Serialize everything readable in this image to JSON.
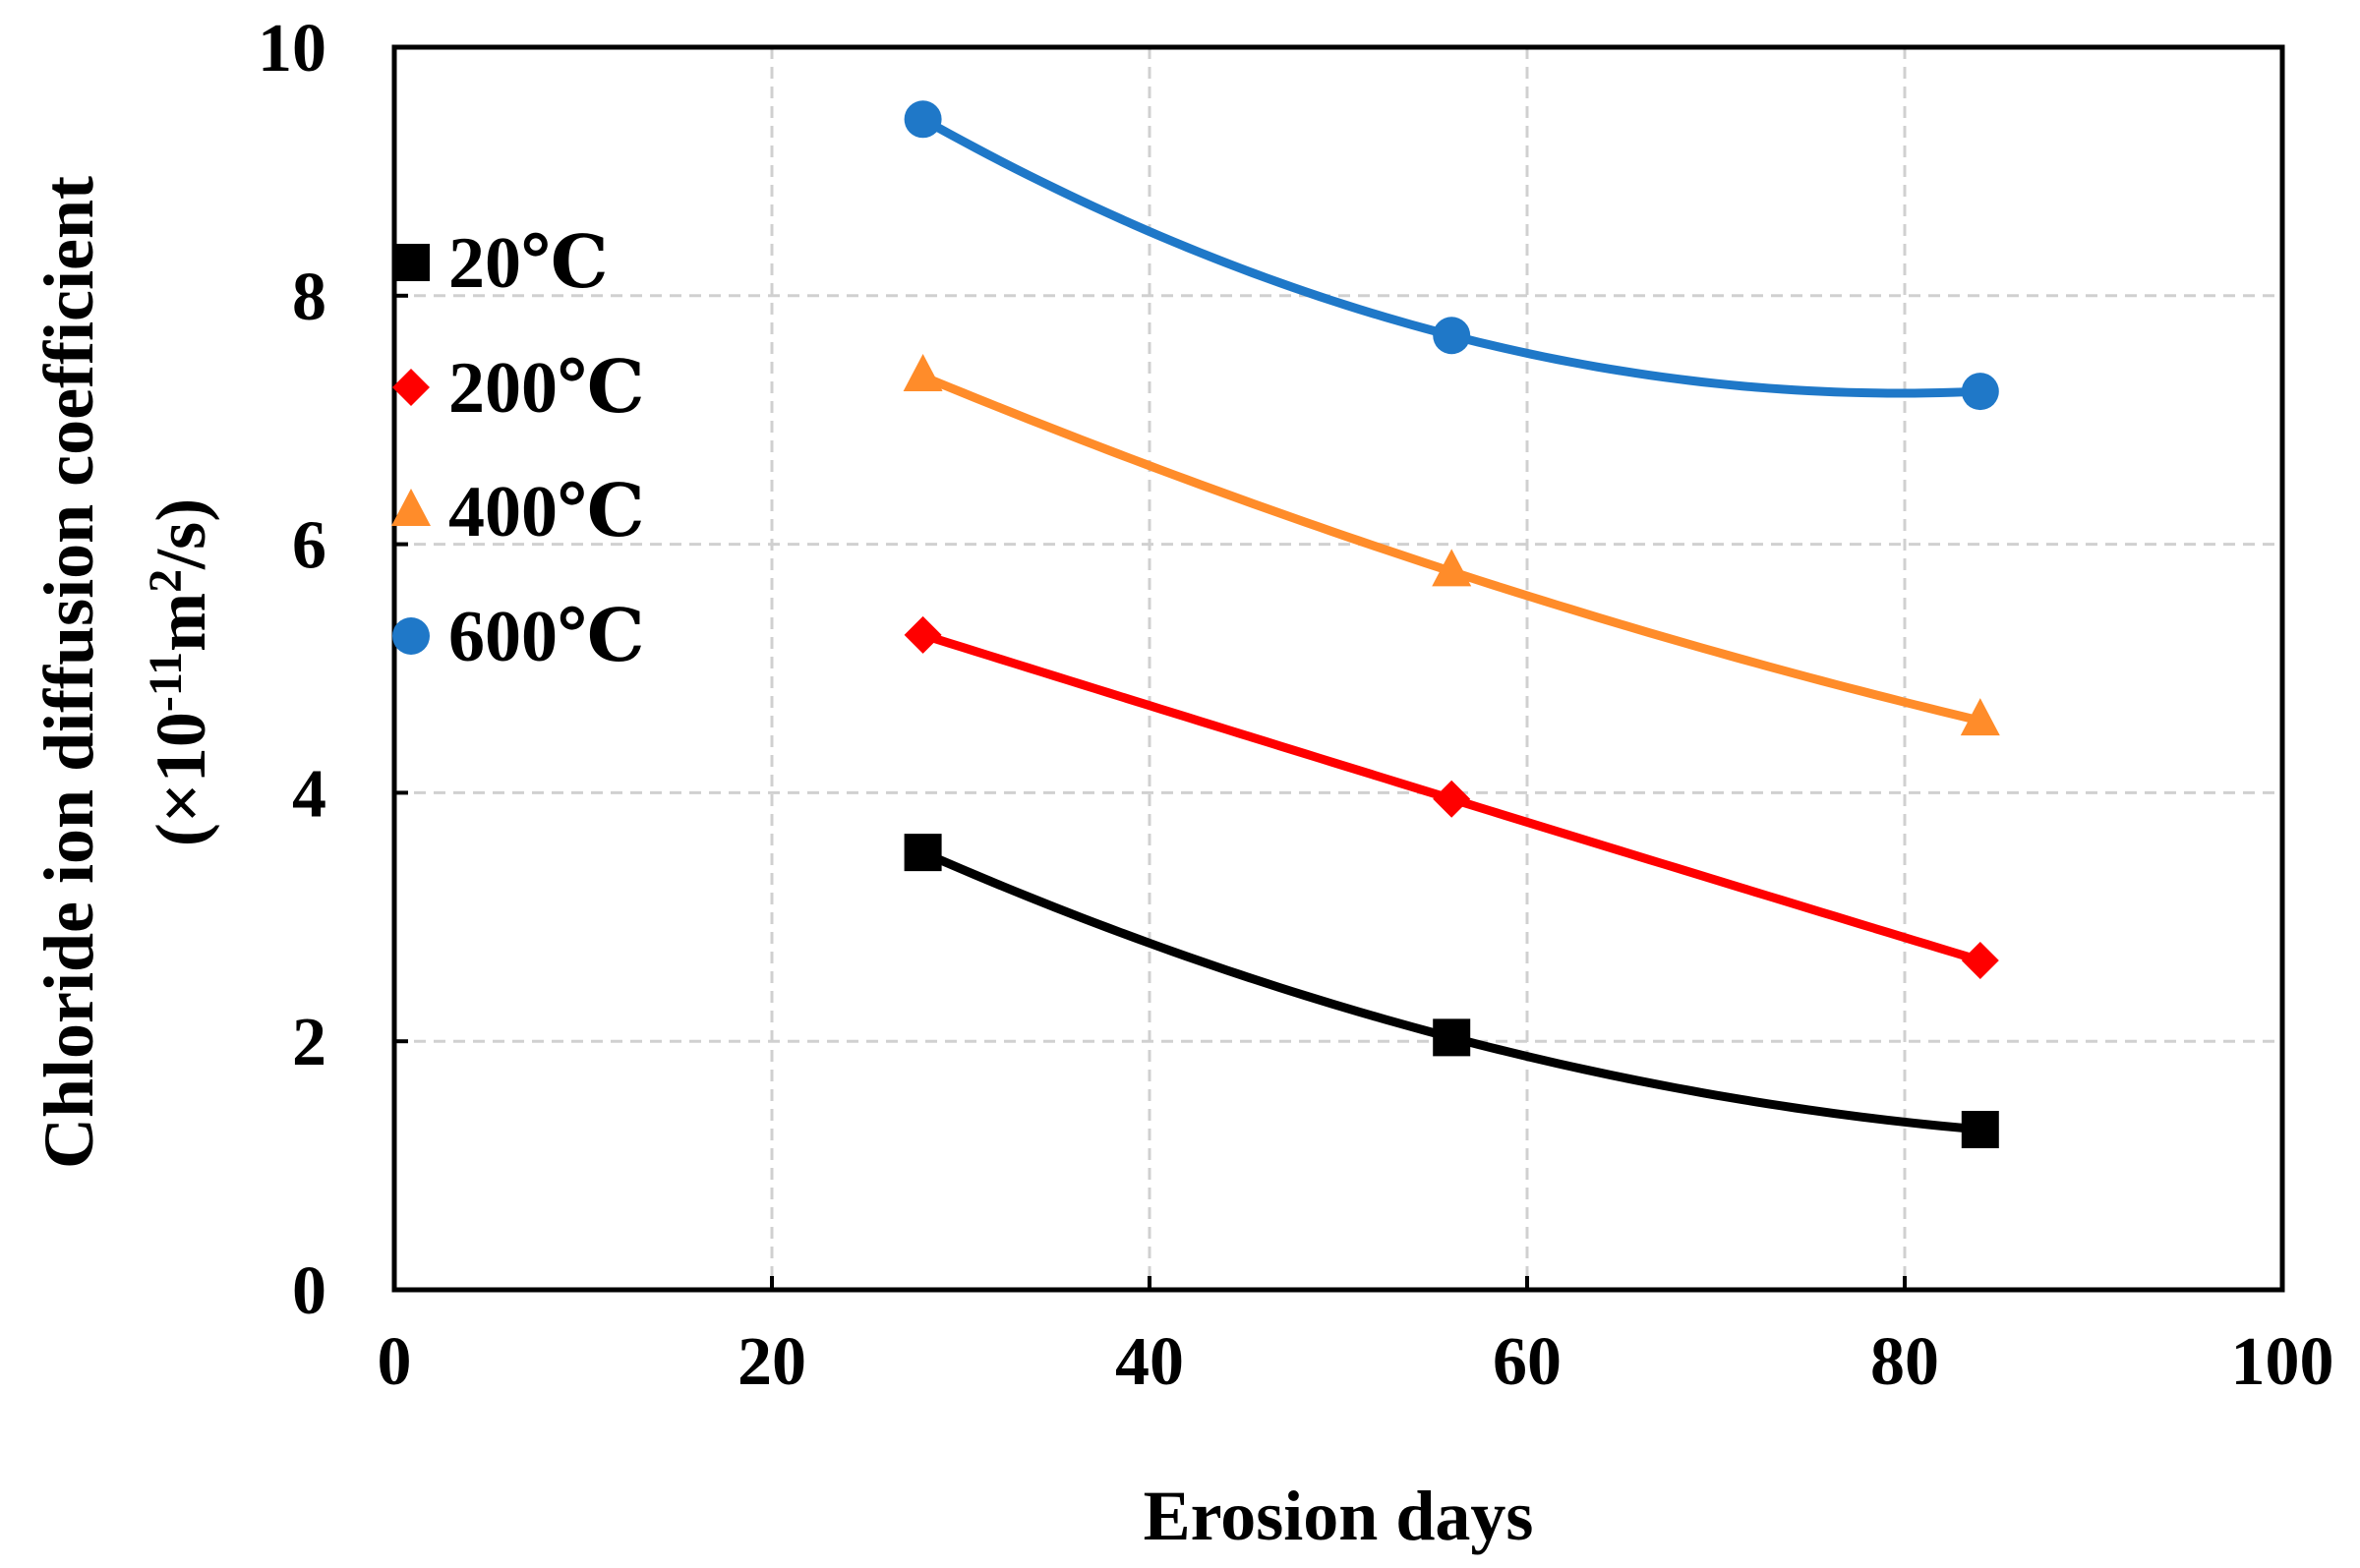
{
  "chart_data": {
    "type": "line",
    "title": "",
    "xlabel": "Erosion days",
    "ylabel_line1": "Chloride ion diffusion coefficient",
    "ylabel_line2_prefix": "(×10",
    "ylabel_line2_exp": "-11",
    "ylabel_line2_mid": "m",
    "ylabel_line2_exp2": "2",
    "ylabel_line2_suffix": "/s)",
    "xlim": [
      0,
      100
    ],
    "ylim": [
      0,
      10
    ],
    "xticks": [
      0,
      20,
      40,
      60,
      80,
      100
    ],
    "yticks": [
      0,
      2,
      4,
      6,
      8,
      10
    ],
    "grid": true,
    "legend_position": "middle-left",
    "x": [
      28,
      56,
      84
    ],
    "series": [
      {
        "name": "20℃",
        "color": "#000000",
        "marker": "square",
        "values": [
          3.52,
          2.03,
          1.29
        ]
      },
      {
        "name": "200℃",
        "color": "#ff0000",
        "marker": "diamond",
        "values": [
          5.27,
          3.95,
          2.65
        ]
      },
      {
        "name": "400℃",
        "color": "#ff8c2a",
        "marker": "triangle",
        "values": [
          7.35,
          5.78,
          4.58
        ]
      },
      {
        "name": "600℃",
        "color": "#1f78c8",
        "marker": "circle",
        "values": [
          9.42,
          7.68,
          7.23
        ]
      }
    ]
  }
}
